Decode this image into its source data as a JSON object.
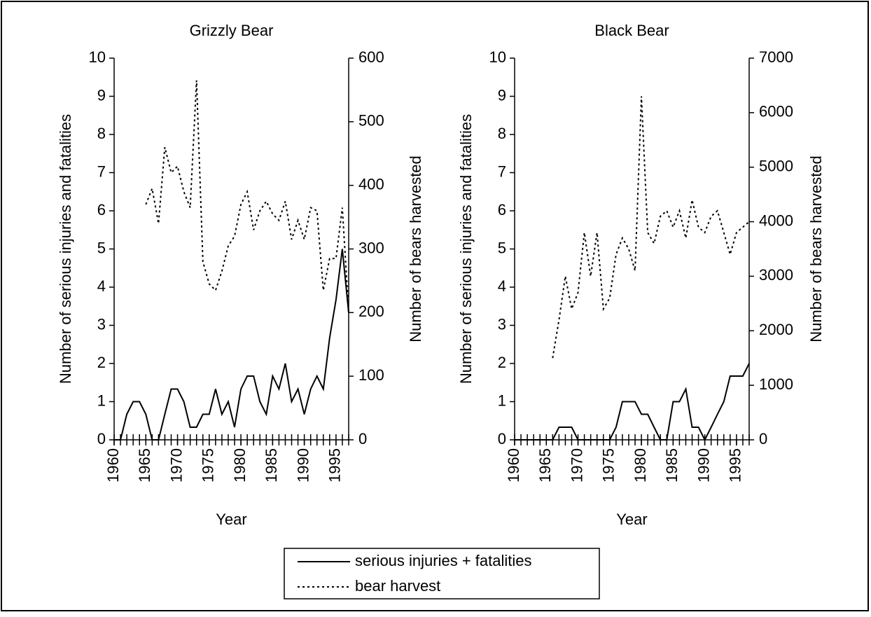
{
  "chart_data": [
    {
      "type": "line",
      "title": "Grizzly Bear",
      "xlabel": "Year",
      "ylabel": "Number of serious injuries and fatalities",
      "y2label": "Number of bears harvested",
      "x": [
        1960,
        1961,
        1962,
        1963,
        1964,
        1965,
        1966,
        1967,
        1968,
        1969,
        1970,
        1971,
        1972,
        1973,
        1974,
        1975,
        1976,
        1977,
        1978,
        1979,
        1980,
        1981,
        1982,
        1983,
        1984,
        1985,
        1986,
        1987,
        1988,
        1989,
        1990,
        1991,
        1992,
        1993,
        1994,
        1995,
        1996,
        1997
      ],
      "xlim": [
        1960,
        1997
      ],
      "xticks": [
        1960,
        1965,
        1970,
        1975,
        1980,
        1985,
        1990,
        1995
      ],
      "ylim": [
        0,
        10
      ],
      "yticks": [
        0,
        1,
        2,
        3,
        4,
        5,
        6,
        7,
        8,
        9,
        10
      ],
      "y2lim": [
        0,
        600
      ],
      "y2ticks": [
        0,
        100,
        200,
        300,
        400,
        500,
        600
      ],
      "series": [
        {
          "name": "serious injuries + fatalities",
          "color": "#000000",
          "line_style": "solid",
          "values": [
            0,
            0,
            0.67,
            1,
            1,
            0.67,
            0,
            0,
            0.67,
            1.33,
            1.33,
            1,
            0.33,
            0.33,
            0.67,
            0.67,
            1.33,
            0.67,
            1,
            0.33,
            1.33,
            1.67,
            1.67,
            1,
            0.67,
            1.67,
            1.33,
            2,
            1,
            1.33,
            0.67,
            1.33,
            1.67,
            1.33,
            2.67,
            3.67,
            5,
            3.33
          ]
        },
        {
          "name": "bear harvest",
          "color": "#000000",
          "line_style": "dotted",
          "axis": "y2",
          "values": [
            null,
            null,
            null,
            null,
            null,
            370,
            395,
            340,
            460,
            420,
            430,
            390,
            365,
            565,
            280,
            245,
            235,
            265,
            305,
            320,
            370,
            390,
            330,
            360,
            375,
            355,
            345,
            375,
            315,
            345,
            315,
            365,
            360,
            235,
            285,
            285,
            365,
            200
          ]
        }
      ]
    },
    {
      "type": "line",
      "title": "Black Bear",
      "xlabel": "Year",
      "ylabel": "Number of serious injuries and fatalities",
      "y2label": "Number of bears harvested",
      "x": [
        1960,
        1961,
        1962,
        1963,
        1964,
        1965,
        1966,
        1967,
        1968,
        1969,
        1970,
        1971,
        1972,
        1973,
        1974,
        1975,
        1976,
        1977,
        1978,
        1979,
        1980,
        1981,
        1982,
        1983,
        1984,
        1985,
        1986,
        1987,
        1988,
        1989,
        1990,
        1991,
        1992,
        1993,
        1994,
        1995,
        1996,
        1997
      ],
      "xlim": [
        1960,
        1997
      ],
      "xticks": [
        1960,
        1965,
        1970,
        1975,
        1980,
        1985,
        1990,
        1995
      ],
      "ylim": [
        0,
        10
      ],
      "yticks": [
        0,
        1,
        2,
        3,
        4,
        5,
        6,
        7,
        8,
        9,
        10
      ],
      "y2lim": [
        0,
        7000
      ],
      "y2ticks": [
        0,
        1000,
        2000,
        3000,
        4000,
        5000,
        6000,
        7000
      ],
      "series": [
        {
          "name": "serious injuries + fatalities",
          "color": "#000000",
          "line_style": "solid",
          "values": [
            0,
            0,
            0,
            0,
            0,
            0,
            0,
            0.33,
            0.33,
            0.33,
            0,
            0,
            0,
            0,
            0,
            0,
            0.33,
            1,
            1,
            1,
            0.67,
            0.67,
            0.33,
            0,
            0,
            1,
            1,
            1.33,
            0.33,
            0.33,
            0,
            0.33,
            0.67,
            1,
            1.67,
            1.67,
            1.67,
            2
          ]
        },
        {
          "name": "bear harvest",
          "color": "#000000",
          "line_style": "dotted",
          "axis": "y2",
          "values": [
            null,
            null,
            null,
            null,
            null,
            null,
            1500,
            2200,
            3000,
            2400,
            2700,
            3800,
            3000,
            3800,
            2400,
            2600,
            3400,
            3700,
            3500,
            3100,
            6300,
            3800,
            3600,
            4100,
            4200,
            3900,
            4200,
            3700,
            4400,
            3900,
            3800,
            4100,
            4200,
            3800,
            3400,
            3800,
            3900,
            4000
          ]
        }
      ]
    }
  ]
}
